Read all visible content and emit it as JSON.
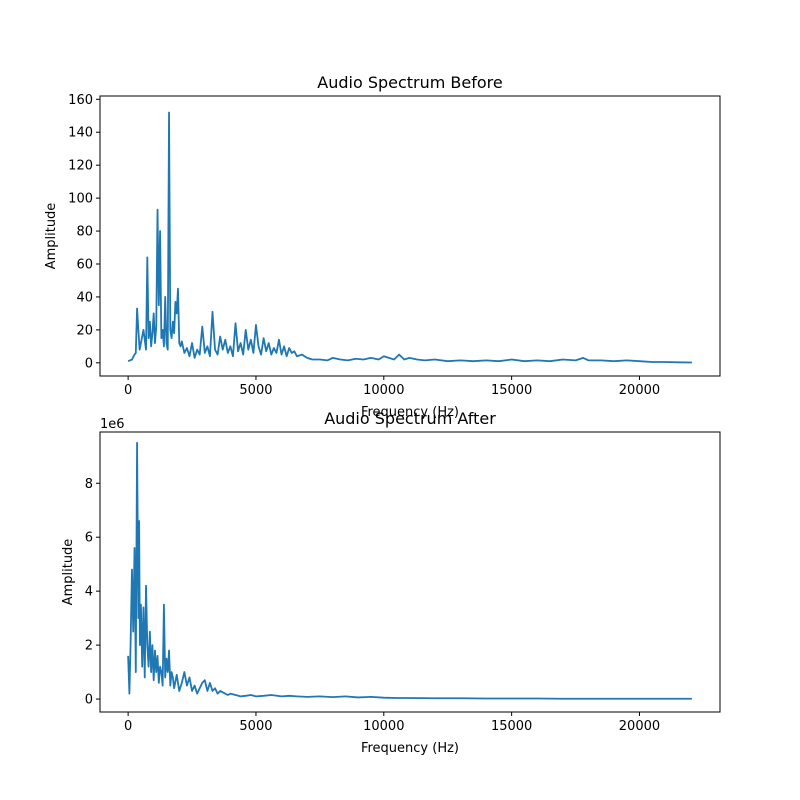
{
  "chart_data": [
    {
      "type": "line",
      "title": "Audio Spectrum Before",
      "xlabel": "Frequency (Hz)",
      "ylabel": "Amplitude",
      "xlim": [
        -1100,
        23150
      ],
      "ylim": [
        -8,
        162
      ],
      "xticks": [
        0,
        5000,
        10000,
        15000,
        20000
      ],
      "xtick_labels": [
        "0",
        "5000",
        "10000",
        "15000",
        "20000"
      ],
      "yticks": [
        0,
        20,
        40,
        60,
        80,
        100,
        120,
        140,
        160
      ],
      "ytick_labels": [
        "0",
        "20",
        "40",
        "60",
        "80",
        "100",
        "120",
        "140",
        "160"
      ],
      "offset_label": "",
      "grid": false,
      "color": "#1f77b4",
      "series": [
        {
          "x": [
            0,
            150,
            250,
            300,
            350,
            400,
            450,
            500,
            600,
            700,
            750,
            800,
            850,
            900,
            950,
            1000,
            1050,
            1100,
            1150,
            1200,
            1250,
            1300,
            1350,
            1400,
            1450,
            1500,
            1550,
            1600,
            1650,
            1700,
            1750,
            1800,
            1850,
            1900,
            1950,
            2000,
            2050,
            2100,
            2200,
            2300,
            2400,
            2500,
            2600,
            2700,
            2800,
            2900,
            3000,
            3100,
            3200,
            3300,
            3400,
            3500,
            3600,
            3700,
            3800,
            3900,
            4000,
            4100,
            4200,
            4300,
            4400,
            4500,
            4600,
            4700,
            4800,
            4900,
            5000,
            5100,
            5200,
            5300,
            5400,
            5500,
            5600,
            5700,
            5800,
            5900,
            6000,
            6100,
            6200,
            6300,
            6400,
            6500,
            6600,
            6800,
            7000,
            7200,
            7500,
            7800,
            8000,
            8300,
            8600,
            8900,
            9200,
            9500,
            9800,
            10000,
            10200,
            10400,
            10600,
            10800,
            11000,
            11300,
            11600,
            12000,
            12500,
            13000,
            13500,
            14000,
            14500,
            15000,
            15500,
            16000,
            16500,
            17000,
            17500,
            17800,
            18000,
            18500,
            19000,
            19500,
            20000,
            20500,
            21000,
            21500,
            22050
          ],
          "y": [
            1,
            2,
            5,
            6,
            33,
            20,
            8,
            12,
            20,
            8,
            64,
            15,
            25,
            10,
            18,
            30,
            12,
            22,
            93,
            35,
            80,
            15,
            20,
            10,
            40,
            12,
            8,
            152,
            20,
            15,
            25,
            18,
            37,
            30,
            45,
            12,
            10,
            13,
            6,
            9,
            4,
            12,
            3,
            8,
            5,
            22,
            6,
            10,
            4,
            31,
            8,
            5,
            16,
            8,
            14,
            6,
            10,
            4,
            24,
            7,
            12,
            5,
            20,
            8,
            14,
            6,
            23,
            10,
            5,
            15,
            7,
            12,
            5,
            9,
            6,
            14,
            5,
            10,
            4,
            9,
            6,
            7,
            4,
            5,
            3,
            2,
            2,
            1.5,
            3,
            2,
            1.5,
            2.5,
            2,
            3,
            2,
            4,
            3,
            2,
            5,
            2,
            3,
            2,
            1.5,
            2,
            1,
            1.5,
            1,
            1.5,
            1,
            2,
            1,
            1.5,
            1,
            2,
            1.5,
            3,
            1.5,
            1.5,
            1,
            1.5,
            1,
            0.5,
            0.5,
            0.3,
            0.2
          ]
        }
      ]
    },
    {
      "type": "line",
      "title": "Audio Spectrum After",
      "xlabel": "Frequency (Hz)",
      "ylabel": "Amplitude",
      "xlim": [
        -1100,
        23150
      ],
      "ylim": [
        -0.48,
        9.9
      ],
      "xticks": [
        0,
        5000,
        10000,
        15000,
        20000
      ],
      "xtick_labels": [
        "0",
        "5000",
        "10000",
        "15000",
        "20000"
      ],
      "yticks": [
        0,
        2,
        4,
        6,
        8
      ],
      "ytick_labels": [
        "0",
        "2",
        "4",
        "6",
        "8"
      ],
      "offset_label": "1e6",
      "grid": false,
      "color": "#1f77b4",
      "series": [
        {
          "x": [
            0,
            50,
            100,
            150,
            200,
            250,
            300,
            350,
            400,
            430,
            460,
            500,
            550,
            600,
            650,
            700,
            750,
            800,
            850,
            900,
            950,
            1000,
            1050,
            1100,
            1150,
            1200,
            1250,
            1300,
            1350,
            1400,
            1450,
            1500,
            1550,
            1600,
            1650,
            1700,
            1750,
            1800,
            1900,
            2000,
            2100,
            2200,
            2300,
            2400,
            2500,
            2600,
            2700,
            2800,
            2900,
            3000,
            3100,
            3200,
            3300,
            3400,
            3500,
            3600,
            3700,
            3800,
            3900,
            4000,
            4200,
            4400,
            4600,
            4800,
            5000,
            5300,
            5600,
            6000,
            6300,
            6600,
            7000,
            7500,
            8000,
            8500,
            9000,
            9500,
            10000,
            10500,
            11000,
            12000,
            13000,
            14000,
            15000,
            16000,
            17000,
            18000,
            19000,
            20000,
            21000,
            22050
          ],
          "y": [
            1.6,
            0.2,
            2.2,
            4.8,
            2.5,
            5.6,
            1.0,
            9.5,
            3.0,
            6.6,
            2.0,
            3.5,
            1.2,
            3.4,
            0.8,
            4.2,
            2.0,
            1.2,
            2.5,
            1.0,
            2.0,
            0.7,
            1.8,
            1.0,
            1.6,
            0.6,
            1.2,
            1.0,
            0.5,
            3.5,
            0.8,
            1.5,
            1.0,
            1.8,
            0.5,
            1.0,
            0.8,
            0.4,
            0.9,
            0.3,
            0.6,
            1.0,
            0.5,
            0.8,
            0.3,
            0.5,
            0.2,
            0.4,
            0.6,
            0.7,
            0.3,
            0.6,
            0.3,
            0.4,
            0.2,
            0.3,
            0.25,
            0.2,
            0.15,
            0.2,
            0.15,
            0.1,
            0.12,
            0.15,
            0.1,
            0.12,
            0.15,
            0.1,
            0.12,
            0.1,
            0.08,
            0.1,
            0.07,
            0.1,
            0.06,
            0.08,
            0.05,
            0.04,
            0.04,
            0.03,
            0.03,
            0.02,
            0.02,
            0.02,
            0.01,
            0.01,
            0.01,
            0.01,
            0.01,
            0.01
          ]
        }
      ]
    }
  ]
}
